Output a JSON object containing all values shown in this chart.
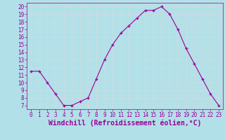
{
  "x": [
    0,
    1,
    2,
    3,
    4,
    5,
    6,
    7,
    8,
    9,
    10,
    11,
    12,
    13,
    14,
    15,
    16,
    17,
    18,
    19,
    20,
    21,
    22,
    23
  ],
  "y": [
    11.5,
    11.5,
    10.0,
    8.5,
    7.0,
    7.0,
    7.5,
    8.0,
    10.5,
    13.0,
    15.0,
    16.5,
    17.5,
    18.5,
    19.5,
    19.5,
    20.0,
    19.0,
    17.0,
    14.5,
    12.5,
    10.5,
    8.5,
    7.0
  ],
  "line_color": "#990099",
  "marker": "+",
  "bg_color": "#b2e0e8",
  "grid_color": "#c8dde0",
  "xlabel": "Windchill (Refroidissement éolien,°C)",
  "xlabel_color": "#990099",
  "xlim": [
    -0.5,
    23.5
  ],
  "ylim": [
    6.5,
    20.5
  ],
  "yticks": [
    7,
    8,
    9,
    10,
    11,
    12,
    13,
    14,
    15,
    16,
    17,
    18,
    19,
    20
  ],
  "xticks": [
    0,
    1,
    2,
    3,
    4,
    5,
    6,
    7,
    8,
    9,
    10,
    11,
    12,
    13,
    14,
    15,
    16,
    17,
    18,
    19,
    20,
    21,
    22,
    23
  ],
  "tick_color": "#990099",
  "tick_fontsize": 5.5,
  "xlabel_fontsize": 7.0,
  "spine_color": "#990099"
}
